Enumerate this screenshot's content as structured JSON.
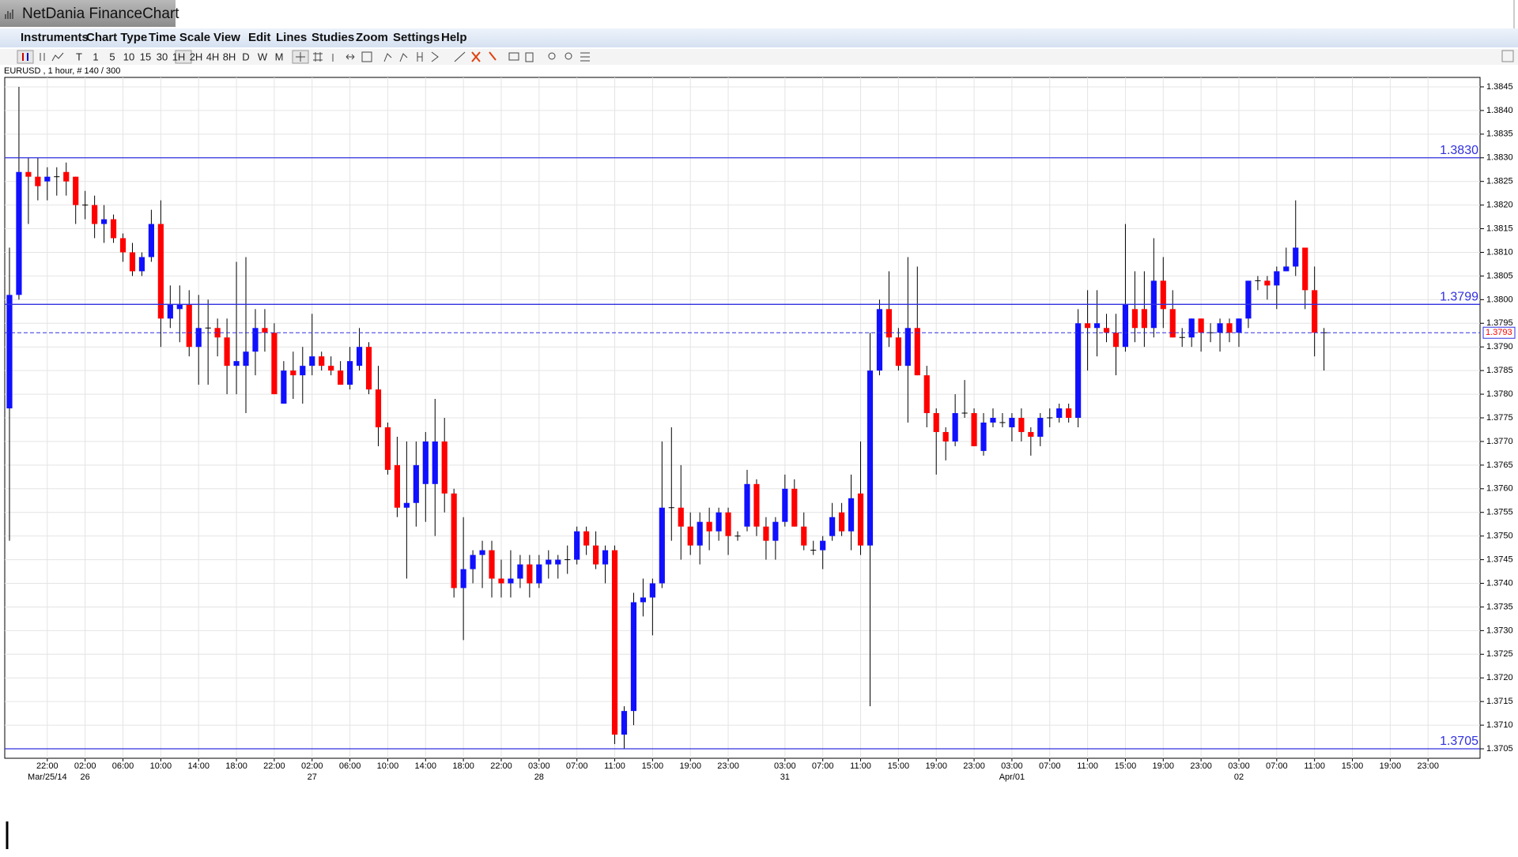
{
  "window": {
    "title": "NetDania FinanceChart"
  },
  "menu": [
    "Instruments",
    "Chart Type",
    "Time Scale",
    "View",
    "Edit",
    "Lines",
    "Studies",
    "Zoom",
    "Settings",
    "Help"
  ],
  "toolbar": [
    "T",
    "1",
    "5",
    "10",
    "15",
    "30",
    "1H",
    "2H",
    "4H",
    "8H",
    "D",
    "W",
    "M"
  ],
  "chart_data": {
    "type": "candlestick",
    "title": "EURUSD , 1 hour, # 140 / 300",
    "up_color": "#1010ff",
    "down_color": "#ff0000",
    "wick_color": "#000000",
    "grid": true,
    "xlim": [
      -0.5,
      155.5
    ],
    "ylim": [
      1.3703,
      1.3847
    ],
    "yticks": [
      1.3705,
      {
        "value": 1.371,
        "label": "1.3710"
      },
      1.3715,
      {
        "value": 1.372,
        "label": "1.3720"
      },
      1.3725,
      {
        "value": 1.373,
        "label": "1.3730"
      },
      1.3735,
      {
        "value": 1.374,
        "label": "1.3740"
      },
      1.3745,
      {
        "value": 1.375,
        "label": "1.3750"
      },
      1.3755,
      {
        "value": 1.376,
        "label": "1.3760"
      },
      1.3765,
      {
        "value": 1.377,
        "label": "1.3770"
      },
      1.3775,
      {
        "value": 1.378,
        "label": "1.3780"
      },
      1.3785,
      {
        "value": 1.379,
        "label": "1.3790"
      },
      1.3795,
      {
        "value": 1.38,
        "label": "1.3800"
      },
      1.3805,
      {
        "value": 1.381,
        "label": "1.3810"
      },
      1.3815,
      {
        "value": 1.382,
        "label": "1.3820"
      },
      1.3825,
      {
        "value": 1.383,
        "label": "1.3830"
      },
      1.3835,
      {
        "value": 1.384,
        "label": "1.3840"
      },
      1.3845
    ],
    "xticks": [
      {
        "value": 4,
        "label": "22:00"
      },
      {
        "value": 8,
        "label": "02:00"
      },
      {
        "value": 12,
        "label": "06:00"
      },
      {
        "value": 16,
        "label": "10:00"
      },
      {
        "value": 20,
        "label": "14:00"
      },
      {
        "value": 24,
        "label": "18:00"
      },
      {
        "value": 28,
        "label": "22:00"
      },
      {
        "value": 32,
        "label": "02:00"
      },
      {
        "value": 36,
        "label": "06:00"
      },
      {
        "value": 40,
        "label": "10:00"
      },
      {
        "value": 44,
        "label": "14:00"
      },
      {
        "value": 48,
        "label": "18:00"
      },
      {
        "value": 52,
        "label": "22:00"
      },
      {
        "value": 56,
        "label": "03:00"
      },
      {
        "value": 60,
        "label": "07:00"
      },
      {
        "value": 64,
        "label": "11:00"
      },
      {
        "value": 68,
        "label": "15:00"
      },
      {
        "value": 72,
        "label": "19:00"
      },
      {
        "value": 76,
        "label": "23:00"
      },
      {
        "value": 82,
        "label": "03:00"
      },
      {
        "value": 86,
        "label": "07:00"
      },
      {
        "value": 90,
        "label": "11:00"
      },
      {
        "value": 94,
        "label": "15:00"
      },
      {
        "value": 98,
        "label": "19:00"
      },
      {
        "value": 102,
        "label": "23:00"
      },
      {
        "value": 106,
        "label": "03:00"
      },
      {
        "value": 110,
        "label": "07:00"
      },
      {
        "value": 114,
        "label": "11:00"
      },
      {
        "value": 118,
        "label": "15:00"
      },
      {
        "value": 122,
        "label": "19:00"
      },
      {
        "value": 126,
        "label": "23:00"
      },
      {
        "value": 130,
        "label": "03:00"
      },
      {
        "value": 134,
        "label": "07:00"
      },
      {
        "value": 138,
        "label": "11:00"
      },
      {
        "value": 142,
        "label": "15:00"
      },
      {
        "value": 146,
        "label": "19:00"
      },
      {
        "value": 150,
        "label": "23:00"
      }
    ],
    "date_ticks": [
      {
        "value": 4,
        "label": "Mar/25/14"
      },
      {
        "value": 8,
        "label": "26"
      },
      {
        "value": 32,
        "label": "27"
      },
      {
        "value": 56,
        "label": "28"
      },
      {
        "value": 82,
        "label": "31"
      },
      {
        "value": 106,
        "label": "Apr/01"
      },
      {
        "value": 130,
        "label": "02"
      }
    ],
    "hlines": [
      {
        "value": 1.383,
        "label": "1.3830"
      },
      {
        "value": 1.3799
      },
      {
        "value": 1.3705,
        "label": "1.3705"
      }
    ],
    "hline_color": "#3030e0",
    "last_price": {
      "value": 1.3793
    },
    "open": [
      1.3777,
      1.3801,
      1.3827,
      1.3826,
      1.3825,
      1.3826,
      1.3827,
      1.3826,
      1.382,
      1.382,
      1.3816,
      1.3817,
      1.3813,
      1.381,
      1.3806,
      1.3809,
      1.3816,
      1.3796,
      1.3798,
      1.3799,
      1.379,
      1.3794,
      1.3794,
      1.3792,
      1.3786,
      1.3786,
      1.3789,
      1.3794,
      1.3793,
      1.3778,
      1.3785,
      1.3784,
      1.3786,
      1.3788,
      1.3786,
      1.3785,
      1.3782,
      1.3786,
      1.379,
      1.3781,
      1.3773,
      1.3765,
      1.3756,
      1.3757,
      1.3761,
      1.3761,
      1.377,
      1.3759,
      1.3739,
      1.3743,
      1.3746,
      1.3747,
      1.3741,
      1.374,
      1.3741,
      1.3744,
      1.374,
      1.3744,
      1.3744,
      1.3745,
      1.3745,
      1.3751,
      1.3748,
      1.3744,
      1.3747,
      1.3708,
      1.3713,
      1.3736,
      1.3737,
      1.374,
      1.3756,
      1.3756,
      1.3752,
      1.3748,
      1.3753,
      1.3751,
      1.3755,
      1.375,
      1.3752,
      1.3761,
      1.3752,
      1.3749,
      1.3753,
      1.376,
      1.3752,
      1.3747,
      1.3747,
      1.375,
      1.3755,
      1.3751,
      1.3759,
      1.3748,
      1.3785,
      1.3798,
      1.3792,
      1.3786,
      1.3794,
      1.3784,
      1.3776,
      1.3772,
      1.377,
      1.3776,
      1.3776,
      1.3768,
      1.3774,
      1.3774,
      1.3773,
      1.3775,
      1.3772,
      1.3771,
      1.3775,
      1.3775,
      1.3777,
      1.3775,
      1.3795,
      1.3794,
      1.3794,
      1.3793,
      1.379,
      1.3798,
      1.3798,
      1.3794,
      1.3804,
      1.3798,
      1.3792,
      1.3792,
      1.3796,
      1.3793,
      1.3793,
      1.3795,
      1.3793,
      1.3796,
      1.3804,
      1.3804,
      1.3803,
      1.3806,
      1.3807,
      1.3811,
      1.3802,
      1.3793
    ],
    "high": [
      1.3811,
      1.3845,
      1.383,
      1.383,
      1.3828,
      1.3828,
      1.3829,
      1.3826,
      1.3823,
      1.3822,
      1.382,
      1.3818,
      1.3814,
      1.3812,
      1.381,
      1.3819,
      1.3821,
      1.3803,
      1.3803,
      1.3802,
      1.3801,
      1.38,
      1.3796,
      1.3796,
      1.3808,
      1.3809,
      1.3798,
      1.3798,
      1.3795,
      1.3787,
      1.3789,
      1.379,
      1.3797,
      1.3789,
      1.3788,
      1.3787,
      1.379,
      1.3794,
      1.3791,
      1.3786,
      1.3774,
      1.3771,
      1.377,
      1.377,
      1.3772,
      1.3779,
      1.3775,
      1.376,
      1.3754,
      1.3747,
      1.3749,
      1.3749,
      1.3745,
      1.3747,
      1.3746,
      1.3746,
      1.3746,
      1.3747,
      1.3746,
      1.3748,
      1.3752,
      1.3752,
      1.3751,
      1.3748,
      1.3748,
      1.3714,
      1.3738,
      1.3741,
      1.3741,
      1.377,
      1.3773,
      1.3765,
      1.3755,
      1.3755,
      1.3756,
      1.3756,
      1.3756,
      1.3751,
      1.3764,
      1.3762,
      1.3754,
      1.3754,
      1.3763,
      1.3762,
      1.3755,
      1.3749,
      1.375,
      1.3757,
      1.3757,
      1.3763,
      1.377,
      1.3793,
      1.38,
      1.3806,
      1.3794,
      1.3809,
      1.3807,
      1.3786,
      1.3777,
      1.3773,
      1.378,
      1.3783,
      1.3777,
      1.3776,
      1.3777,
      1.3776,
      1.3776,
      1.3777,
      1.3773,
      1.3776,
      1.3777,
      1.3778,
      1.3778,
      1.3798,
      1.3802,
      1.3802,
      1.3797,
      1.3797,
      1.3816,
      1.3806,
      1.3806,
      1.3813,
      1.3809,
      1.3802,
      1.3794,
      1.3796,
      1.3796,
      1.3795,
      1.3796,
      1.3796,
      1.3796,
      1.3804,
      1.3805,
      1.3805,
      1.3807,
      1.3811,
      1.3821,
      1.3811,
      1.3807,
      1.3794
    ],
    "low": [
      1.3749,
      1.38,
      1.3816,
      1.3821,
      1.3821,
      1.3822,
      1.3822,
      1.3816,
      1.3817,
      1.3813,
      1.3812,
      1.3812,
      1.3808,
      1.3805,
      1.3805,
      1.3808,
      1.379,
      1.3794,
      1.3791,
      1.3788,
      1.3782,
      1.3782,
      1.3788,
      1.378,
      1.378,
      1.3776,
      1.3784,
      1.3789,
      1.378,
      1.3778,
      1.3779,
      1.3778,
      1.3784,
      1.3785,
      1.3784,
      1.3782,
      1.3781,
      1.3785,
      1.378,
      1.3769,
      1.3763,
      1.3754,
      1.3741,
      1.3752,
      1.3753,
      1.375,
      1.3755,
      1.3737,
      1.3728,
      1.374,
      1.3739,
      1.3737,
      1.3737,
      1.3737,
      1.3739,
      1.3737,
      1.3739,
      1.3741,
      1.3741,
      1.3742,
      1.3744,
      1.3746,
      1.3743,
      1.374,
      1.3706,
      1.3705,
      1.371,
      1.3733,
      1.3729,
      1.3739,
      1.3749,
      1.3745,
      1.3746,
      1.3744,
      1.3747,
      1.3749,
      1.3746,
      1.3749,
      1.3751,
      1.375,
      1.3745,
      1.3745,
      1.3752,
      1.3752,
      1.3747,
      1.3746,
      1.3743,
      1.3749,
      1.375,
      1.3747,
      1.3746,
      1.3714,
      1.3784,
      1.379,
      1.3785,
      1.3774,
      1.3784,
      1.3773,
      1.3763,
      1.3766,
      1.3769,
      1.3775,
      1.3769,
      1.3767,
      1.3773,
      1.3773,
      1.377,
      1.377,
      1.3767,
      1.3769,
      1.3773,
      1.3774,
      1.3774,
      1.3773,
      1.3785,
      1.3788,
      1.3791,
      1.3784,
      1.3789,
      1.3791,
      1.379,
      1.3792,
      1.3794,
      1.3792,
      1.379,
      1.379,
      1.3789,
      1.3791,
      1.3789,
      1.3791,
      1.379,
      1.3794,
      1.3802,
      1.38,
      1.3798,
      1.3806,
      1.3805,
      1.3798,
      1.3788,
      1.3785
    ],
    "close": [
      1.3801,
      1.3827,
      1.3826,
      1.3824,
      1.3826,
      1.3826,
      1.3825,
      1.382,
      1.382,
      1.3816,
      1.3817,
      1.3813,
      1.381,
      1.3806,
      1.3809,
      1.3816,
      1.3796,
      1.3799,
      1.3799,
      1.379,
      1.3794,
      1.3794,
      1.3792,
      1.3786,
      1.3787,
      1.3789,
      1.3794,
      1.3793,
      1.378,
      1.3785,
      1.3784,
      1.3786,
      1.3788,
      1.3786,
      1.3785,
      1.3782,
      1.3787,
      1.379,
      1.3781,
      1.3773,
      1.3764,
      1.3756,
      1.3757,
      1.3765,
      1.377,
      1.377,
      1.3759,
      1.3739,
      1.3743,
      1.3746,
      1.3747,
      1.3741,
      1.374,
      1.3741,
      1.3744,
      1.374,
      1.3744,
      1.3745,
      1.3745,
      1.3745,
      1.3751,
      1.3748,
      1.3744,
      1.3747,
      1.3708,
      1.3713,
      1.3736,
      1.3737,
      1.374,
      1.3756,
      1.3756,
      1.3752,
      1.3748,
      1.3753,
      1.3751,
      1.3755,
      1.375,
      1.375,
      1.3761,
      1.3752,
      1.3749,
      1.3753,
      1.376,
      1.3752,
      1.3748,
      1.3747,
      1.3749,
      1.3754,
      1.3751,
      1.3758,
      1.3748,
      1.3785,
      1.3798,
      1.3792,
      1.3786,
      1.3794,
      1.3784,
      1.3776,
      1.3772,
      1.377,
      1.3776,
      1.3776,
      1.3769,
      1.3774,
      1.3775,
      1.3774,
      1.3775,
      1.3772,
      1.3771,
      1.3775,
      1.3775,
      1.3777,
      1.3775,
      1.3795,
      1.3794,
      1.3795,
      1.3793,
      1.379,
      1.3799,
      1.3794,
      1.3794,
      1.3804,
      1.3798,
      1.3792,
      1.3792,
      1.3796,
      1.3793,
      1.3793,
      1.3795,
      1.3793,
      1.3796,
      1.3804,
      1.3804,
      1.3803,
      1.3806,
      1.3807,
      1.3811,
      1.3802,
      1.3793,
      1.3793
    ]
  }
}
